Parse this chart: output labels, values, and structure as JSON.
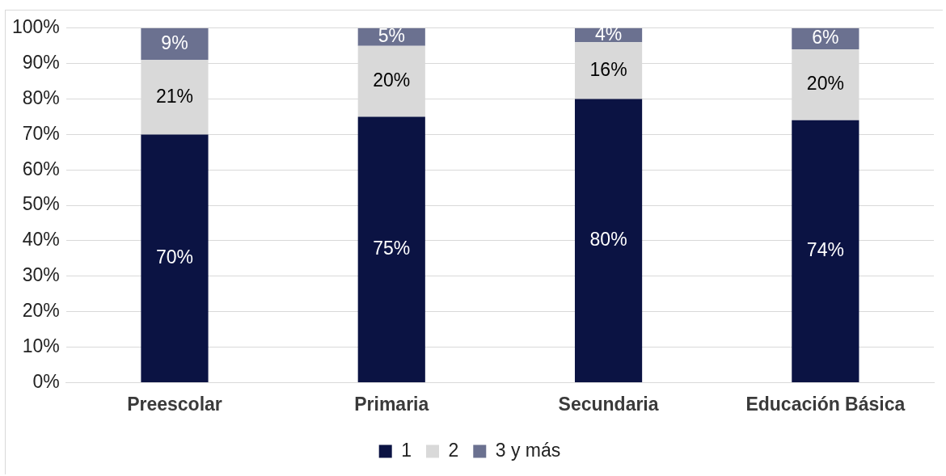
{
  "chart_data": {
    "type": "bar",
    "stacked": true,
    "categories": [
      "Preescolar",
      "Primaria",
      "Secundaria",
      "Educación Básica"
    ],
    "series": [
      {
        "name": "1",
        "color": "#0b1343",
        "values": [
          70,
          75,
          80,
          74
        ],
        "value_labels": [
          "70%",
          "75%",
          "80%",
          "74%"
        ]
      },
      {
        "name": "2",
        "color": "#d9d9d9",
        "values": [
          21,
          20,
          16,
          20
        ],
        "value_labels": [
          "21%",
          "20%",
          "16%",
          "20%"
        ]
      },
      {
        "name": "3 y más",
        "color": "#6b7190",
        "values": [
          9,
          5,
          4,
          6
        ],
        "value_labels": [
          "9%",
          "5%",
          "4%",
          "6%"
        ]
      }
    ],
    "ylim": [
      0,
      100
    ],
    "yticks": [
      {
        "value": 0,
        "label": "0%"
      },
      {
        "value": 10,
        "label": "10%"
      },
      {
        "value": 20,
        "label": "20%"
      },
      {
        "value": 30,
        "label": "30%"
      },
      {
        "value": 40,
        "label": "40%"
      },
      {
        "value": 50,
        "label": "50%"
      },
      {
        "value": 60,
        "label": "60%"
      },
      {
        "value": 70,
        "label": "70%"
      },
      {
        "value": 80,
        "label": "80%"
      },
      {
        "value": 90,
        "label": "90%"
      },
      {
        "value": 100,
        "label": "100%"
      }
    ],
    "grid": "y",
    "legend": "bottom"
  }
}
